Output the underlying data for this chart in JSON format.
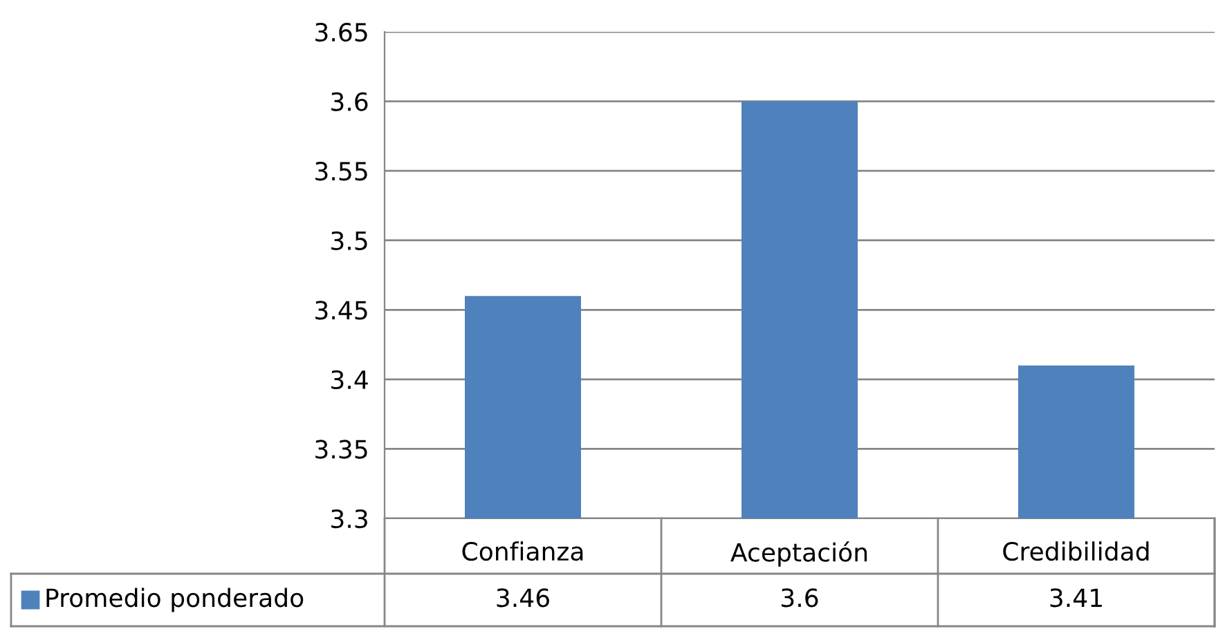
{
  "chart_data": {
    "type": "bar",
    "categories": [
      "Confianza",
      "Aceptación",
      "Credibilidad"
    ],
    "series": [
      {
        "name": "Promedio ponderado",
        "color": "#4f81bd",
        "values": [
          3.46,
          3.6,
          3.41
        ]
      }
    ],
    "ylim": [
      3.3,
      3.65
    ],
    "yticks": [
      3.3,
      3.35,
      3.4,
      3.45,
      3.5,
      3.55,
      3.6,
      3.65
    ],
    "grid": "y",
    "data_labels": true,
    "legend": "bottom"
  }
}
